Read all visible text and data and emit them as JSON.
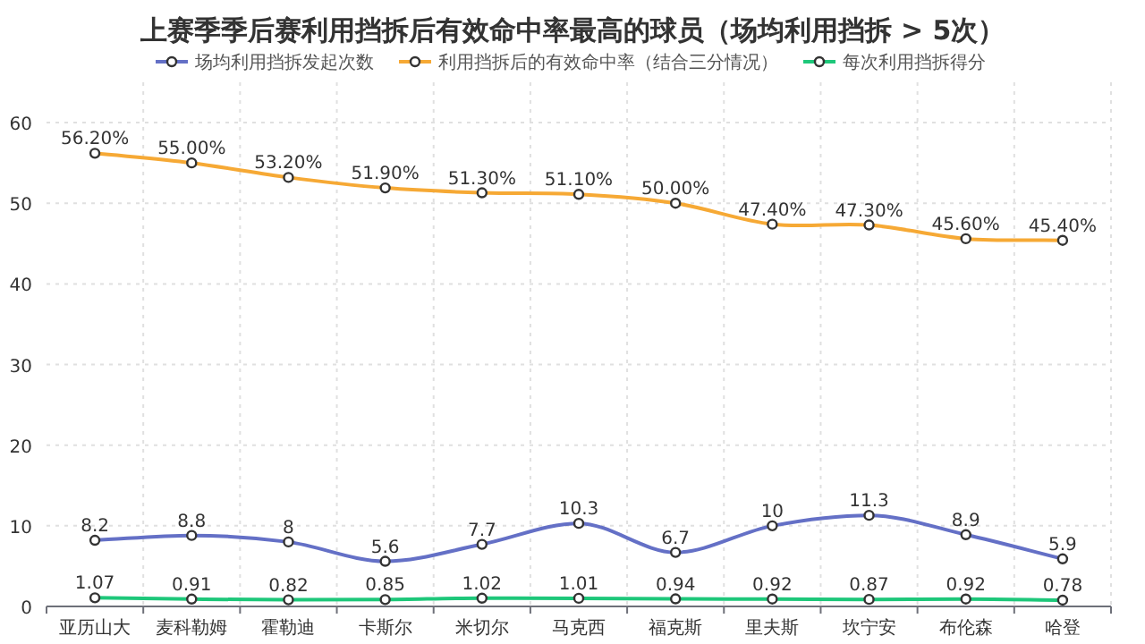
{
  "chart_data": {
    "type": "line",
    "title": "上赛季季后赛利用挡拆后有效命中率最高的球员（场均利用挡拆 > 5次）",
    "categories": [
      "亚历山大",
      "麦科勒姆",
      "霍勒迪",
      "卡斯尔",
      "米切尔",
      "马克西",
      "福克斯",
      "里夫斯",
      "坎宁安",
      "布伦森",
      "哈登"
    ],
    "series": [
      {
        "name": "场均利用挡拆发起次数",
        "color": "#6470c6",
        "values": [
          8.2,
          8.8,
          8,
          5.6,
          7.7,
          10.3,
          6.7,
          10,
          11.3,
          8.9,
          5.9
        ],
        "value_labels": [
          "8.2",
          "8.8",
          "8",
          "5.6",
          "7.7",
          "10.3",
          "6.7",
          "10",
          "11.3",
          "8.9",
          "5.9"
        ]
      },
      {
        "name": "利用挡拆后的有效命中率（结合三分情况）",
        "color": "#f6a935",
        "values": [
          56.2,
          55.0,
          53.2,
          51.9,
          51.3,
          51.1,
          50.0,
          47.4,
          47.3,
          45.6,
          45.4
        ],
        "value_labels": [
          "56.20%",
          "55.00%",
          "53.20%",
          "51.90%",
          "51.30%",
          "51.10%",
          "50.00%",
          "47.40%",
          "47.30%",
          "45.60%",
          "45.40%"
        ]
      },
      {
        "name": "每次利用挡拆得分",
        "color": "#1ec77a",
        "values": [
          1.07,
          0.91,
          0.82,
          0.85,
          1.02,
          1.01,
          0.94,
          0.92,
          0.87,
          0.92,
          0.78
        ],
        "value_labels": [
          "1.07",
          "0.91",
          "0.82",
          "0.85",
          "1.02",
          "1.01",
          "0.94",
          "0.92",
          "0.87",
          "0.92",
          "0.78"
        ]
      }
    ],
    "ylim": [
      0,
      65
    ],
    "yticks": [
      0,
      10,
      20,
      30,
      40,
      50,
      60
    ],
    "grid": true,
    "legend": "top",
    "marker": "circle",
    "line_style": "solid"
  }
}
